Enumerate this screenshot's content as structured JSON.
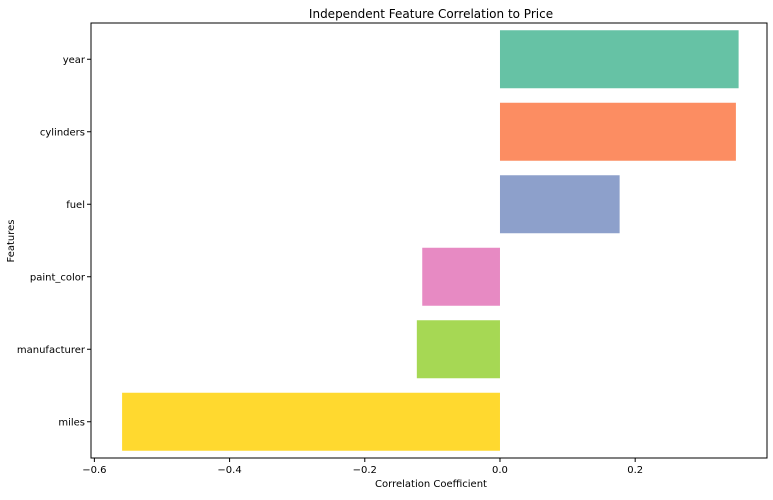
{
  "chart_data": {
    "type": "bar",
    "orientation": "horizontal",
    "title": "Independent Feature Correlation to Price",
    "xlabel": "Correlation Coefficient",
    "ylabel": "Features",
    "categories": [
      "year",
      "cylinders",
      "fuel",
      "paint_color",
      "manufacturer",
      "miles"
    ],
    "values": [
      0.353,
      0.349,
      0.177,
      -0.115,
      -0.123,
      -0.559
    ],
    "colors": [
      "#66c2a5",
      "#fc8d62",
      "#8da0cb",
      "#e78ac3",
      "#a6d854",
      "#ffd92f"
    ],
    "xlim": [
      -0.605,
      0.395
    ],
    "xticks": [
      -0.6,
      -0.4,
      -0.2,
      0.0,
      0.2
    ],
    "xtick_labels": [
      "−0.6",
      "−0.4",
      "−0.2",
      "0.0",
      "0.2"
    ],
    "grid": false,
    "legend": false,
    "palette": "Set2"
  }
}
